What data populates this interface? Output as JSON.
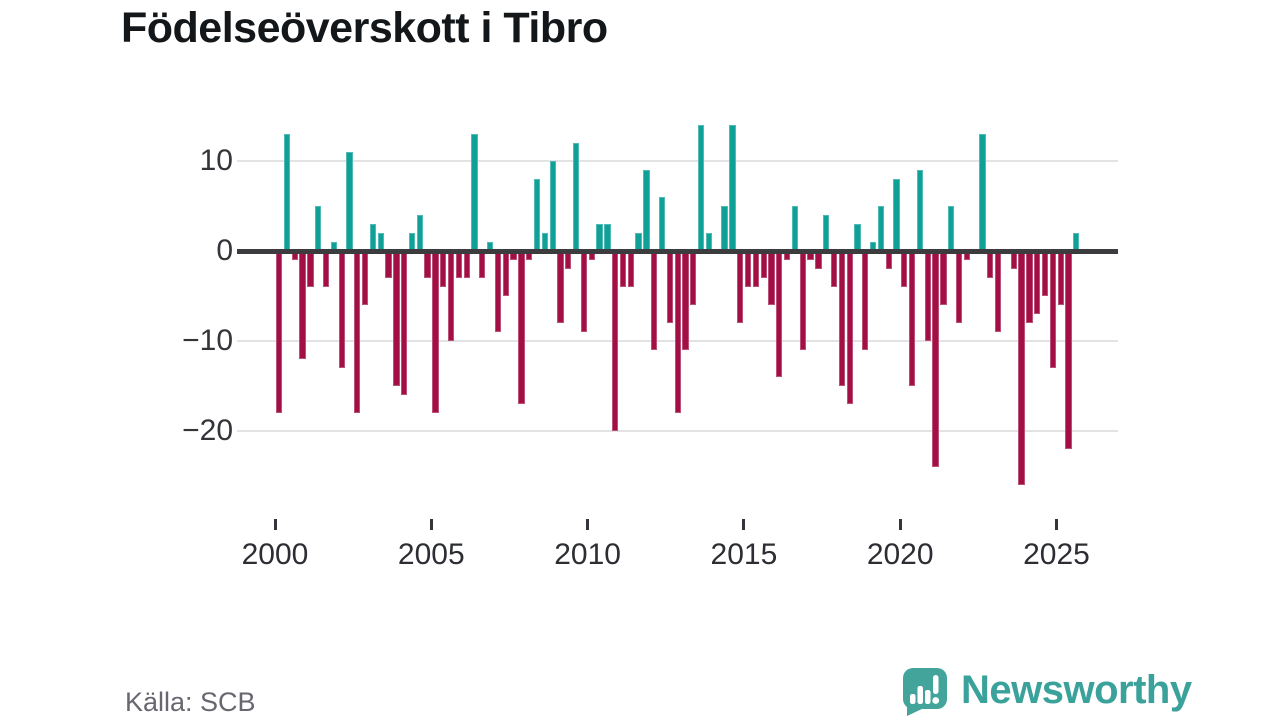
{
  "title": "Födelseöverskott i Tibro",
  "source": "Källa: SCB",
  "branding": {
    "name": "Newsworthy"
  },
  "colors": {
    "positive": "#0fa098",
    "negative": "#a30e45",
    "axis": "#3c3c3e",
    "grid": "#e3e3e5",
    "title": "#14171a",
    "tick_label": "#2c2e33",
    "source_text": "#67676f",
    "brand": "#3aa29b"
  },
  "chart_data": {
    "type": "bar",
    "title": "Födelseöverskott i Tibro",
    "x_start": "2000 Q1",
    "x_end": "2025 Q3",
    "period": "quarterly",
    "grid": "horizontal",
    "ylim": [
      -27,
      15
    ],
    "yticks": [
      {
        "value": 10,
        "label": "10"
      },
      {
        "value": 0,
        "label": "0"
      },
      {
        "value": -10,
        "label": "−10"
      },
      {
        "value": -20,
        "label": "−20"
      }
    ],
    "xticks": [
      {
        "value": 2000,
        "label": "2000"
      },
      {
        "value": 2005,
        "label": "2005"
      },
      {
        "value": 2010,
        "label": "2010"
      },
      {
        "value": 2015,
        "label": "2015"
      },
      {
        "value": 2020,
        "label": "2020"
      },
      {
        "value": 2025,
        "label": "2025"
      }
    ],
    "years": [
      {
        "year": 2000,
        "q": [
          -18,
          13,
          -1,
          -12
        ]
      },
      {
        "year": 2001,
        "q": [
          -4,
          5,
          -4,
          1
        ]
      },
      {
        "year": 2002,
        "q": [
          -13,
          11,
          -18,
          -6
        ]
      },
      {
        "year": 2003,
        "q": [
          3,
          2,
          -3,
          -15
        ]
      },
      {
        "year": 2004,
        "q": [
          -16,
          2,
          4,
          -3
        ]
      },
      {
        "year": 2005,
        "q": [
          -18,
          -4,
          -10,
          -3
        ]
      },
      {
        "year": 2006,
        "q": [
          -3,
          13,
          -3,
          1
        ]
      },
      {
        "year": 2007,
        "q": [
          -9,
          -5,
          -1,
          -17
        ]
      },
      {
        "year": 2008,
        "q": [
          -1,
          8,
          2,
          10
        ]
      },
      {
        "year": 2009,
        "q": [
          -8,
          -2,
          12,
          -9
        ]
      },
      {
        "year": 2010,
        "q": [
          -1,
          3,
          3,
          -20
        ]
      },
      {
        "year": 2011,
        "q": [
          -4,
          -4,
          2,
          9
        ]
      },
      {
        "year": 2012,
        "q": [
          -11,
          6,
          -8,
          -18
        ]
      },
      {
        "year": 2013,
        "q": [
          -11,
          -6,
          14,
          2
        ]
      },
      {
        "year": 2014,
        "q": [
          0,
          5,
          14,
          -8
        ]
      },
      {
        "year": 2015,
        "q": [
          -4,
          -4,
          -3,
          -6
        ]
      },
      {
        "year": 2016,
        "q": [
          -14,
          -1,
          5,
          -11
        ]
      },
      {
        "year": 2017,
        "q": [
          -1,
          -2,
          4,
          -4
        ]
      },
      {
        "year": 2018,
        "q": [
          -15,
          -17,
          3,
          -11
        ]
      },
      {
        "year": 2019,
        "q": [
          1,
          5,
          -2,
          8
        ]
      },
      {
        "year": 2020,
        "q": [
          -4,
          -15,
          9,
          -10
        ]
      },
      {
        "year": 2021,
        "q": [
          -24,
          -6,
          5,
          -8
        ]
      },
      {
        "year": 2022,
        "q": [
          -1,
          0,
          13,
          -3
        ]
      },
      {
        "year": 2023,
        "q": [
          -9,
          0,
          -2,
          -26
        ]
      },
      {
        "year": 2024,
        "q": [
          -8,
          -7,
          -5,
          -13
        ]
      },
      {
        "year": 2025,
        "q": [
          -6,
          -22,
          2
        ]
      }
    ]
  }
}
